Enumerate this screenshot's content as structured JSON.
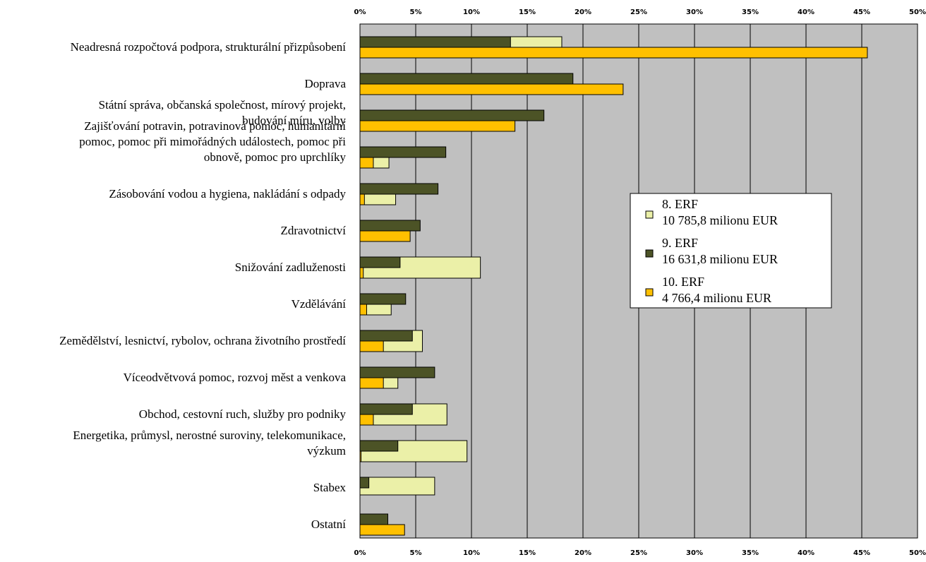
{
  "chart_data": {
    "type": "bar",
    "orientation": "horizontal",
    "title": "",
    "xlabel": "",
    "ylabel": "",
    "xlim": [
      0,
      50
    ],
    "tick_labels": [
      "0%",
      "5%",
      "10%",
      "15%",
      "20%",
      "25%",
      "30%",
      "35%",
      "40%",
      "45%",
      "50%"
    ],
    "grid": true,
    "legend_position": "right",
    "categories": [
      [
        "Neadresná rozpočtová podpora, strukturální přizpůsobení"
      ],
      [
        "Doprava"
      ],
      [
        "Státní správa, občanská společnost, mírový projekt,",
        "budování míru, volby"
      ],
      [
        "Zajišťování potravin, potravinová pomoc, humanitární",
        "pomoc, pomoc při mimořádných událostech, pomoc při",
        "obnově, pomoc pro uprchlíky"
      ],
      [
        "Zásobování vodou a hygiena, nakládání s odpady"
      ],
      [
        "Zdravotnictví"
      ],
      [
        "Snižování zadluženosti"
      ],
      [
        "Vzdělávání"
      ],
      [
        "Zemědělství, lesnictví, rybolov, ochrana životního prostředí"
      ],
      [
        "Víceodvětvová pomoc, rozvoj měst a venkova"
      ],
      [
        "Obchod, cestovní ruch, služby pro podniky"
      ],
      [
        "Energetika, průmysl, nerostné suroviny, telekomunikace,",
        "výzkum"
      ],
      [
        "Stabex"
      ],
      [
        "Ostatní"
      ]
    ],
    "series": [
      {
        "name": "8. ERF",
        "detail": "10 785,8 milionu EUR",
        "color": "#ebf0a8",
        "values": [
          18.1,
          0,
          0,
          2.6,
          3.2,
          0,
          10.8,
          2.8,
          5.6,
          3.4,
          7.8,
          9.6,
          6.7,
          0
        ]
      },
      {
        "name": "9. ERF",
        "detail": "16 631,8 milionu EUR",
        "color": "#4c5326",
        "values": [
          13.5,
          19.1,
          16.5,
          7.7,
          7.0,
          5.4,
          3.6,
          4.1,
          4.7,
          6.7,
          4.7,
          3.4,
          0.8,
          2.5
        ]
      },
      {
        "name": "10. ERF",
        "detail": "4 766,4 milionu EUR",
        "color": "#ffc000",
        "values": [
          45.5,
          23.6,
          13.9,
          1.2,
          0.4,
          4.5,
          0.3,
          0.6,
          2.1,
          2.1,
          1.2,
          0.1,
          0,
          4.0
        ]
      }
    ]
  }
}
